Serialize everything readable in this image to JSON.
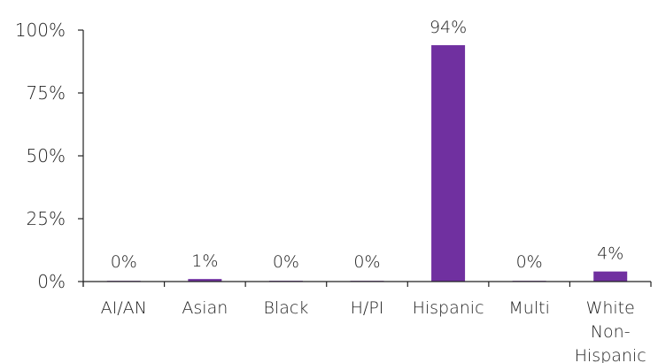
{
  "chart_data": {
    "type": "bar",
    "categories": [
      "AI/AN",
      "Asian",
      "Black",
      "H/PI",
      "Hispanic",
      "Multi",
      "White Non-Hispanic"
    ],
    "category_lines": [
      [
        "AI/AN"
      ],
      [
        "Asian"
      ],
      [
        "Black"
      ],
      [
        "H/PI"
      ],
      [
        "Hispanic"
      ],
      [
        "Multi"
      ],
      [
        "White",
        "Non-",
        "Hispanic"
      ]
    ],
    "values": [
      0,
      1,
      0.3,
      0,
      94,
      0,
      4
    ],
    "data_labels": [
      "0%",
      "1%",
      "0%",
      "0%",
      "94%",
      "0%",
      "4%"
    ],
    "ylim": [
      0,
      100
    ],
    "yticks": [
      0,
      25,
      50,
      75,
      100
    ],
    "ytick_labels": [
      "0%",
      "25%",
      "50%",
      "75%",
      "100%"
    ],
    "grid": false,
    "bar_color": "#7030a0",
    "title": "",
    "xlabel": "",
    "ylabel": ""
  }
}
